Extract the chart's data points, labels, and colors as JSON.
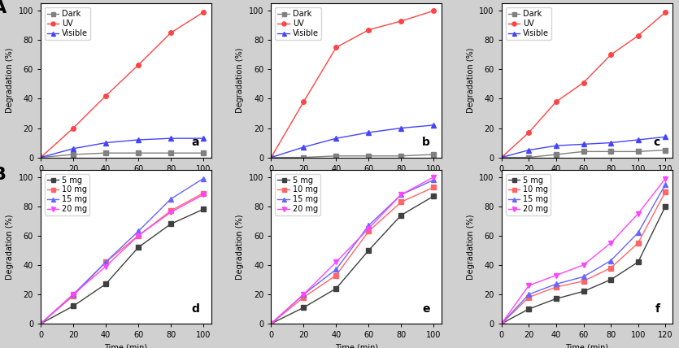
{
  "panel_A": {
    "label": "A",
    "subplots": [
      {
        "label": "a",
        "x": [
          0,
          20,
          40,
          60,
          80,
          100
        ],
        "series": [
          {
            "name": "Dark",
            "color": "#808080",
            "marker": "s",
            "y": [
              0,
              2,
              3,
              3,
              3,
              3
            ]
          },
          {
            "name": "UV",
            "color": "#FF4444",
            "marker": "o",
            "y": [
              0,
              20,
              42,
              63,
              85,
              99
            ]
          },
          {
            "name": "Visible",
            "color": "#4444FF",
            "marker": "^",
            "y": [
              0,
              6,
              10,
              12,
              13,
              13
            ]
          }
        ],
        "xlim": [
          0,
          105
        ],
        "ylim": [
          0,
          105
        ],
        "xticks": [
          0,
          20,
          40,
          60,
          80,
          100
        ],
        "yticks": [
          0,
          20,
          40,
          60,
          80,
          100
        ]
      },
      {
        "label": "b",
        "x": [
          0,
          20,
          40,
          60,
          80,
          100
        ],
        "series": [
          {
            "name": "Dark",
            "color": "#808080",
            "marker": "s",
            "y": [
              0,
              0,
              1,
              1,
              1,
              2
            ]
          },
          {
            "name": "UV",
            "color": "#FF4444",
            "marker": "o",
            "y": [
              0,
              38,
              75,
              87,
              93,
              100
            ]
          },
          {
            "name": "Visible",
            "color": "#4444FF",
            "marker": "^",
            "y": [
              0,
              7,
              13,
              17,
              20,
              22
            ]
          }
        ],
        "xlim": [
          0,
          105
        ],
        "ylim": [
          0,
          105
        ],
        "xticks": [
          0,
          20,
          40,
          60,
          80,
          100
        ],
        "yticks": [
          0,
          20,
          40,
          60,
          80,
          100
        ]
      },
      {
        "label": "c",
        "x": [
          0,
          20,
          40,
          60,
          80,
          100,
          120
        ],
        "series": [
          {
            "name": "Dark",
            "color": "#808080",
            "marker": "s",
            "y": [
              0,
              0,
              2,
              4,
              4,
              4,
              5
            ]
          },
          {
            "name": "UV",
            "color": "#FF4444",
            "marker": "o",
            "y": [
              0,
              17,
              38,
              51,
              70,
              83,
              99
            ]
          },
          {
            "name": "Visible",
            "color": "#4444FF",
            "marker": "^",
            "y": [
              0,
              5,
              8,
              9,
              10,
              12,
              14
            ]
          }
        ],
        "xlim": [
          0,
          125
        ],
        "ylim": [
          0,
          105
        ],
        "xticks": [
          0,
          20,
          40,
          60,
          80,
          100,
          120
        ],
        "yticks": [
          0,
          20,
          40,
          60,
          80,
          100
        ]
      }
    ]
  },
  "panel_B": {
    "label": "B",
    "subplots": [
      {
        "label": "d",
        "x": [
          0,
          20,
          40,
          60,
          80,
          100
        ],
        "series": [
          {
            "name": "5 mg",
            "color": "#404040",
            "marker": "s",
            "y": [
              0,
              12,
              27,
              52,
              68,
              78
            ]
          },
          {
            "name": "10 mg",
            "color": "#FF6666",
            "marker": "s",
            "y": [
              0,
              19,
              42,
              60,
              77,
              89
            ]
          },
          {
            "name": "15 mg",
            "color": "#6666FF",
            "marker": "^",
            "y": [
              0,
              20,
              42,
              63,
              85,
              99
            ]
          },
          {
            "name": "20 mg",
            "color": "#FF44FF",
            "marker": "v",
            "y": [
              0,
              20,
              39,
              60,
              76,
              88
            ]
          }
        ],
        "xlim": [
          0,
          105
        ],
        "ylim": [
          0,
          105
        ],
        "xticks": [
          0,
          20,
          40,
          60,
          80,
          100
        ],
        "yticks": [
          0,
          20,
          40,
          60,
          80,
          100
        ]
      },
      {
        "label": "e",
        "x": [
          0,
          20,
          40,
          60,
          80,
          100
        ],
        "series": [
          {
            "name": "5 mg",
            "color": "#404040",
            "marker": "s",
            "y": [
              0,
              11,
              24,
              50,
              74,
              87
            ]
          },
          {
            "name": "10 mg",
            "color": "#FF6666",
            "marker": "s",
            "y": [
              0,
              18,
              33,
              63,
              83,
              93
            ]
          },
          {
            "name": "15 mg",
            "color": "#6666FF",
            "marker": "^",
            "y": [
              0,
              20,
              37,
              67,
              88,
              98
            ]
          },
          {
            "name": "20 mg",
            "color": "#FF44FF",
            "marker": "v",
            "y": [
              0,
              20,
              42,
              65,
              88,
              100
            ]
          }
        ],
        "xlim": [
          0,
          105
        ],
        "ylim": [
          0,
          105
        ],
        "xticks": [
          0,
          20,
          40,
          60,
          80,
          100
        ],
        "yticks": [
          0,
          20,
          40,
          60,
          80,
          100
        ]
      },
      {
        "label": "f",
        "x": [
          0,
          20,
          40,
          60,
          80,
          100,
          120
        ],
        "series": [
          {
            "name": "5 mg",
            "color": "#404040",
            "marker": "s",
            "y": [
              0,
              10,
              17,
              22,
              30,
              42,
              80
            ]
          },
          {
            "name": "10 mg",
            "color": "#FF6666",
            "marker": "s",
            "y": [
              0,
              18,
              25,
              29,
              38,
              55,
              90
            ]
          },
          {
            "name": "15 mg",
            "color": "#6666FF",
            "marker": "^",
            "y": [
              0,
              20,
              27,
              32,
              43,
              62,
              95
            ]
          },
          {
            "name": "20 mg",
            "color": "#FF44FF",
            "marker": "v",
            "y": [
              0,
              26,
              33,
              40,
              55,
              75,
              99
            ]
          }
        ],
        "xlim": [
          0,
          125
        ],
        "ylim": [
          0,
          105
        ],
        "xticks": [
          0,
          20,
          40,
          60,
          80,
          100,
          120
        ],
        "yticks": [
          0,
          20,
          40,
          60,
          80,
          100
        ]
      }
    ]
  },
  "xlabel": "Time (min)",
  "ylabel": "Degradation (%)",
  "background_color": "#d0d0d0",
  "panel_label_fontsize": 16,
  "subplot_label_fontsize": 10,
  "legend_fontsize": 7,
  "axis_fontsize": 7,
  "tick_fontsize": 7
}
